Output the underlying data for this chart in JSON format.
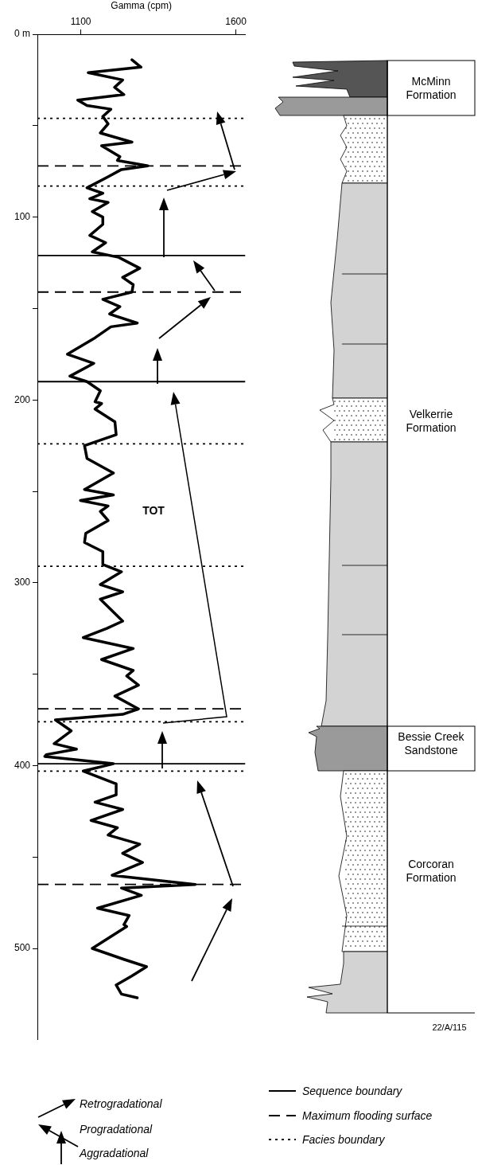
{
  "chart_data": {
    "type": "line",
    "xlabel": "Gamma (cpm)",
    "color": "#000000",
    "marker": "none",
    "line_style": "solid",
    "grid": false,
    "x": [
      1265,
      1294,
      1124,
      1235,
      1209,
      1239,
      1090,
      1120,
      1197,
      1171,
      1188,
      1163,
      1265,
      1167,
      1226,
      1218,
      1316,
      1231,
      1188,
      1120,
      1171,
      1129,
      1188,
      1137,
      1171,
      1171,
      1129,
      1180,
      1137,
      1222,
      1290,
      1235,
      1269,
      1265,
      1171,
      1226,
      1193,
      1282,
      1197,
      1146,
      1057,
      1142,
      1065,
      1120,
      1163,
      1146,
      1167,
      1146,
      1210,
      1214,
      1112,
      1120,
      1205,
      1112,
      1205,
      1099,
      1188,
      1163,
      1188,
      1116,
      1112,
      1171,
      1171,
      1231,
      1163,
      1235,
      1163,
      1235,
      1184,
      1108,
      1269,
      1167,
      1269,
      1248,
      1286,
      1210,
      1286,
      1235,
      1018,
      1069,
      1014,
      1086,
      989,
      984,
      1205,
      1108,
      1214,
      1214,
      1146,
      1235,
      1133,
      1218,
      1188,
      1290,
      1235,
      1299,
      1201,
      1469,
      1231,
      1295,
      1154,
      1256,
      1239,
      1248,
      1137,
      1239,
      1312,
      1265,
      1214,
      1231,
      1282
    ],
    "values": [
      14,
      18,
      21,
      25,
      29,
      33,
      36,
      39,
      41,
      45,
      49,
      54,
      59,
      61,
      67,
      69,
      72,
      74,
      78,
      84,
      87,
      90,
      92,
      97,
      100,
      104,
      110,
      114,
      119,
      122,
      128,
      133,
      137,
      141,
      145,
      149,
      153,
      158,
      160,
      166,
      175,
      180,
      187,
      190,
      195,
      201,
      202,
      205,
      212,
      219,
      225,
      232,
      240,
      249,
      252,
      255,
      258,
      261,
      266,
      273,
      278,
      283,
      290,
      294,
      301,
      305,
      309,
      321,
      325,
      330,
      336,
      342,
      348,
      351,
      356,
      362,
      369,
      372,
      375,
      381,
      388,
      391,
      394,
      395,
      399,
      403,
      410,
      416,
      420,
      424,
      430,
      434,
      438,
      443,
      448,
      453,
      460,
      465,
      467,
      471,
      478,
      482,
      487,
      488,
      500,
      506,
      510,
      515,
      520,
      525,
      527
    ],
    "xlim": [
      960,
      1630
    ],
    "xticks": [
      1100,
      1600
    ],
    "ylim": [
      550,
      0
    ],
    "yticks": [
      {
        "value": 0,
        "label": "0 m"
      },
      {
        "value": 50,
        "label": null
      },
      100,
      {
        "value": 150,
        "label": null
      },
      200,
      {
        "value": 250,
        "label": null
      },
      300,
      {
        "value": 350,
        "label": null
      },
      400,
      {
        "value": 450,
        "label": null
      },
      500
    ],
    "ref_lines": [
      {
        "axis": "y",
        "value": 46,
        "line_style": "dotted"
      },
      {
        "axis": "y",
        "value": 83,
        "line_style": "dotted"
      },
      {
        "axis": "y",
        "value": 224,
        "line_style": "dotted"
      },
      {
        "axis": "y",
        "value": 291,
        "line_style": "dotted"
      },
      {
        "axis": "y",
        "value": 376,
        "line_style": "dotted"
      },
      {
        "axis": "y",
        "value": 403,
        "line_style": "dotted"
      },
      {
        "axis": "y",
        "value": 121,
        "line_style": "solid"
      },
      {
        "axis": "y",
        "value": 190,
        "line_style": "solid"
      },
      {
        "axis": "y",
        "value": 399,
        "line_style": "solid"
      },
      {
        "axis": "y",
        "value": 72,
        "line_style": "dashed"
      },
      {
        "axis": "y",
        "value": 141,
        "line_style": "dashed"
      },
      {
        "axis": "y",
        "value": 369,
        "line_style": "dashed"
      },
      {
        "axis": "y",
        "value": 465,
        "line_style": "dashed"
      }
    ],
    "annotations": [
      "TOT",
      "McMinn Formation",
      "Velkerrie Formation",
      "Bessie Creek Sandstone",
      "Corcoran Formation",
      "22/A/115",
      "Retrogradational",
      "Progradational",
      "Aggradational",
      "Sequence boundary",
      "Maximum flooding surface",
      "Facies boundary"
    ]
  }
}
